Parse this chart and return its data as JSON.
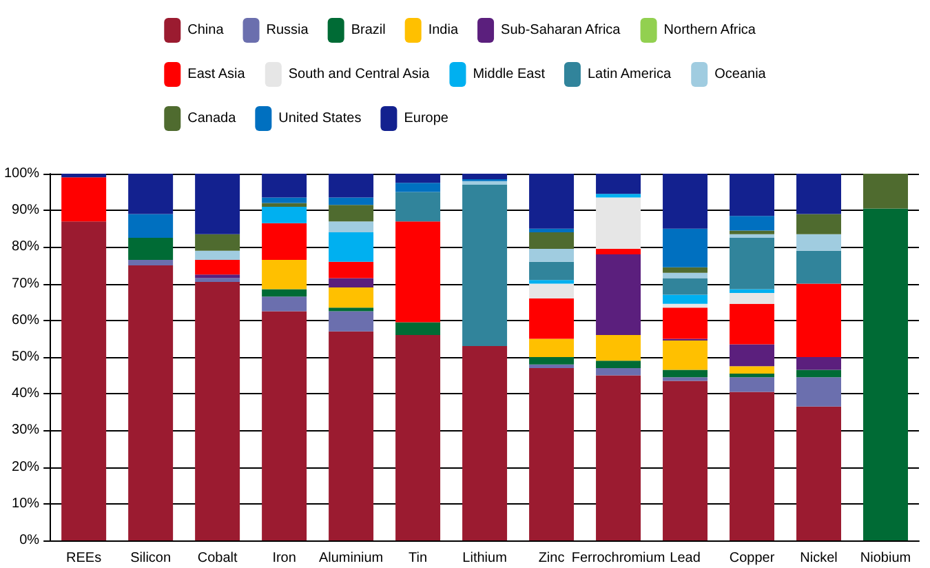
{
  "chart_data": {
    "type": "bar",
    "stacked": true,
    "legend": "top",
    "grid": "y",
    "categories": [
      "REEs",
      "Silicon",
      "Cobalt",
      "Iron",
      "Aluminium",
      "Tin",
      "Lithium",
      "Zinc",
      "Ferrochromium",
      "Lead",
      "Copper",
      "Nickel",
      "Niobium"
    ],
    "ylim": [
      0,
      100
    ],
    "yticks": [
      {
        "value": 0,
        "label": "0%"
      },
      {
        "value": 10,
        "label": "10%"
      },
      {
        "value": 20,
        "label": "20%"
      },
      {
        "value": 30,
        "label": "30%"
      },
      {
        "value": 40,
        "label": "40%"
      },
      {
        "value": 50,
        "label": "50%"
      },
      {
        "value": 60,
        "label": "60%"
      },
      {
        "value": 70,
        "label": "70%"
      },
      {
        "value": 80,
        "label": "80%"
      },
      {
        "value": 90,
        "label": "90%"
      },
      {
        "value": 100,
        "label": "100%"
      }
    ],
    "series": [
      {
        "name": "China",
        "color": "#9b1b30",
        "values": [
          87,
          75,
          70.5,
          62.5,
          57,
          56,
          53,
          47,
          45,
          43.5,
          40.5,
          36.5,
          0
        ]
      },
      {
        "name": "Russia",
        "color": "#6b6fae",
        "values": [
          0,
          1.5,
          1,
          4,
          5.5,
          0,
          0,
          1,
          2,
          1,
          4,
          8,
          0
        ]
      },
      {
        "name": "Brazil",
        "color": "#006b35",
        "values": [
          0,
          6,
          0,
          2,
          1,
          3.5,
          0,
          2,
          2,
          2,
          1,
          2,
          90.5
        ]
      },
      {
        "name": "India",
        "color": "#ffc000",
        "values": [
          0,
          0,
          0,
          8,
          5.5,
          0,
          0,
          5,
          7,
          8,
          2,
          0,
          0
        ]
      },
      {
        "name": "Sub-Saharan Africa",
        "color": "#5b1f7d",
        "values": [
          0,
          0,
          1,
          0,
          2.5,
          0,
          0,
          0,
          22,
          0.5,
          6,
          3.5,
          0
        ]
      },
      {
        "name": "Northern Africa",
        "color": "#92d050",
        "values": [
          0,
          0,
          0,
          0,
          0,
          0,
          0,
          0,
          0,
          0,
          0,
          0,
          0
        ]
      },
      {
        "name": "East Asia",
        "color": "#ff0000",
        "values": [
          12,
          0,
          4,
          10,
          4.5,
          27.5,
          0,
          11,
          1.5,
          8.5,
          11,
          20,
          0
        ]
      },
      {
        "name": "South and Central Asia",
        "color": "#e6e6e6",
        "values": [
          0,
          0,
          0,
          0,
          0,
          0,
          0,
          4,
          14,
          1,
          3,
          0,
          0
        ]
      },
      {
        "name": "Middle East",
        "color": "#00b0f0",
        "values": [
          0,
          0,
          0,
          4.5,
          8,
          0,
          0,
          1,
          1,
          2.5,
          1,
          0,
          0
        ]
      },
      {
        "name": "Latin America",
        "color": "#31849b",
        "values": [
          0,
          0,
          0,
          0,
          0,
          8,
          44,
          5,
          0,
          4.5,
          14,
          9,
          0
        ]
      },
      {
        "name": "Oceania",
        "color": "#a0cce0",
        "values": [
          0,
          0,
          2.5,
          0,
          3,
          0,
          1,
          3.5,
          0,
          1.5,
          1,
          4.5,
          0
        ]
      },
      {
        "name": "Canada",
        "color": "#4f6b2f",
        "values": [
          0,
          0,
          4.5,
          1,
          4.5,
          0,
          0,
          4.5,
          0,
          1.5,
          1,
          5.5,
          9.5
        ]
      },
      {
        "name": "United States",
        "color": "#0070c0",
        "values": [
          0,
          6.5,
          0,
          1.5,
          2,
          2.5,
          0.5,
          1,
          0,
          10.5,
          4,
          0,
          0
        ]
      },
      {
        "name": "Europe",
        "color": "#13218f",
        "values": [
          1,
          11,
          16.5,
          6.5,
          6.5,
          2.5,
          1.5,
          15,
          5.5,
          15,
          11.5,
          11,
          0
        ]
      }
    ]
  }
}
